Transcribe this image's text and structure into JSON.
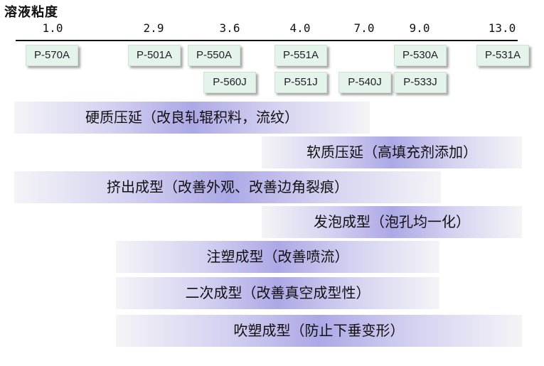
{
  "title": "溶液粘度",
  "ticks": [
    "1.0",
    "2.9",
    "3.6",
    "4.0",
    "7.0",
    "9.0",
    "13.0"
  ],
  "grades_row1": [
    "P-570A",
    "P-501A",
    "P-550A",
    "P-551A",
    "P-530A",
    "P-531A"
  ],
  "grades_row2": [
    "P-560J",
    "P-551J",
    "P-540J",
    "P-533J"
  ],
  "applications": [
    "硬质压延（改良轧辊积料，流纹）",
    "软质压延（高填充剂添加）",
    "挤出成型（改善外观、改善边角裂痕）",
    "发泡成型（泡孔均一化）",
    "注塑成型（改善喷流）",
    "二次成型（改善真空成型性）",
    "吹塑成型（防止下垂变形）"
  ],
  "colors": {
    "grade_fill": "#e5f4ea",
    "band_mid": "#aca8e6",
    "band_edge": "#f4f4f7"
  }
}
